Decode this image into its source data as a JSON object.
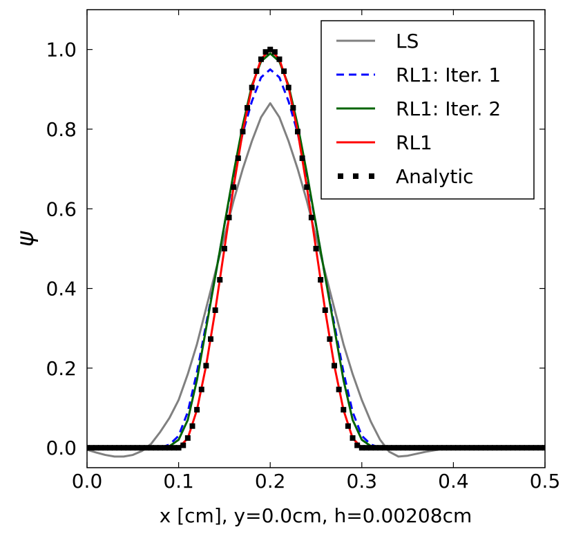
{
  "chart_data": {
    "type": "line",
    "title": "",
    "xlabel": "x [cm], y=0.0cm, h=0.00208cm",
    "ylabel": "ψ",
    "xlim": [
      0.0,
      0.5
    ],
    "ylim": [
      -0.05,
      1.1
    ],
    "xticks": [
      0.0,
      0.1,
      0.2,
      0.3,
      0.4,
      0.5
    ],
    "xtick_labels": [
      "0.0",
      "0.1",
      "0.2",
      "0.3",
      "0.4",
      "0.5"
    ],
    "yticks": [
      0.0,
      0.2,
      0.4,
      0.6,
      0.8,
      1.0
    ],
    "ytick_labels": [
      "0.0",
      "0.2",
      "0.4",
      "0.6",
      "0.8",
      "1.0"
    ],
    "grid": false,
    "legend_position": "top-right",
    "series": [
      {
        "name": "LS",
        "color": "#808080",
        "style": "solid",
        "x": [
          0.0,
          0.01,
          0.02,
          0.03,
          0.04,
          0.05,
          0.06,
          0.07,
          0.08,
          0.09,
          0.1,
          0.11,
          0.12,
          0.13,
          0.14,
          0.15,
          0.16,
          0.17,
          0.18,
          0.19,
          0.2,
          0.21,
          0.22,
          0.23,
          0.24,
          0.25,
          0.26,
          0.27,
          0.28,
          0.29,
          0.3,
          0.31,
          0.32,
          0.33,
          0.34,
          0.35,
          0.36,
          0.37,
          0.38,
          0.39,
          0.4,
          0.41,
          0.5
        ],
        "y": [
          -0.005,
          -0.012,
          -0.018,
          -0.022,
          -0.022,
          -0.018,
          -0.008,
          0.01,
          0.04,
          0.075,
          0.12,
          0.185,
          0.26,
          0.35,
          0.44,
          0.53,
          0.62,
          0.7,
          0.77,
          0.83,
          0.865,
          0.83,
          0.77,
          0.7,
          0.62,
          0.53,
          0.44,
          0.35,
          0.26,
          0.185,
          0.12,
          0.065,
          0.02,
          -0.01,
          -0.022,
          -0.02,
          -0.015,
          -0.01,
          -0.006,
          -0.002,
          0.0,
          0.0,
          0.0
        ]
      },
      {
        "name": "RL1: Iter. 1",
        "color": "#0000ff",
        "style": "dashed",
        "x": [
          0.0,
          0.08,
          0.09,
          0.1,
          0.11,
          0.12,
          0.13,
          0.14,
          0.15,
          0.16,
          0.17,
          0.18,
          0.19,
          0.2,
          0.21,
          0.22,
          0.23,
          0.24,
          0.25,
          0.26,
          0.27,
          0.28,
          0.29,
          0.3,
          0.31,
          0.32,
          0.5
        ],
        "y": [
          0.0,
          0.0,
          0.008,
          0.03,
          0.09,
          0.19,
          0.31,
          0.43,
          0.56,
          0.68,
          0.79,
          0.87,
          0.93,
          0.95,
          0.93,
          0.87,
          0.79,
          0.68,
          0.56,
          0.43,
          0.31,
          0.19,
          0.09,
          0.03,
          0.008,
          0.0,
          0.0
        ]
      },
      {
        "name": "RL1: Iter. 2",
        "color": "#006400",
        "style": "solid",
        "x": [
          0.0,
          0.085,
          0.09,
          0.1,
          0.11,
          0.12,
          0.13,
          0.14,
          0.15,
          0.16,
          0.17,
          0.18,
          0.19,
          0.2,
          0.21,
          0.22,
          0.23,
          0.24,
          0.25,
          0.26,
          0.27,
          0.28,
          0.29,
          0.3,
          0.31,
          0.315,
          0.5
        ],
        "y": [
          0.0,
          0.0,
          0.004,
          0.02,
          0.07,
          0.17,
          0.3,
          0.43,
          0.56,
          0.69,
          0.81,
          0.91,
          0.97,
          0.99,
          0.97,
          0.91,
          0.81,
          0.69,
          0.56,
          0.43,
          0.3,
          0.17,
          0.07,
          0.02,
          0.004,
          0.0,
          0.0
        ]
      },
      {
        "name": "RL1",
        "color": "#ff0000",
        "style": "solid",
        "x": [
          0.0,
          0.1,
          0.11,
          0.12,
          0.13,
          0.14,
          0.15,
          0.16,
          0.17,
          0.18,
          0.19,
          0.2,
          0.21,
          0.22,
          0.23,
          0.24,
          0.25,
          0.26,
          0.27,
          0.28,
          0.29,
          0.3,
          0.5
        ],
        "y": [
          0.0,
          0.0,
          0.024,
          0.095,
          0.206,
          0.345,
          0.5,
          0.655,
          0.794,
          0.905,
          0.976,
          1.0,
          0.976,
          0.905,
          0.794,
          0.655,
          0.5,
          0.345,
          0.206,
          0.095,
          0.024,
          0.0,
          0.0
        ]
      },
      {
        "name": "Analytic",
        "color": "#000000",
        "style": "markers",
        "formula": "0.5*(1+cos(10*pi*(x-0.2))) for 0.1<=x<=0.3, else 0",
        "x_start": 0.0,
        "x_end": 0.5,
        "x_step": 0.005
      }
    ]
  }
}
